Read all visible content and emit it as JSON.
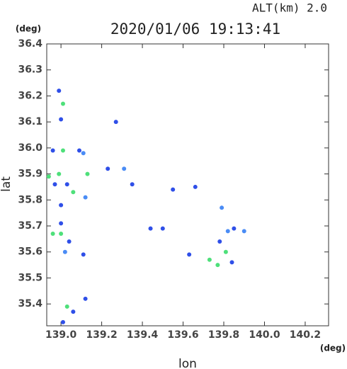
{
  "chart_data": {
    "type": "scatter",
    "corner_label": "ALT(km)  2.0",
    "title": "2020/01/06 19:13:41",
    "y_unit": "(deg)",
    "x_unit": "(deg)",
    "x_label": "lon",
    "y_label": "lat",
    "xlim": [
      138.93,
      140.315
    ],
    "ylim": [
      35.316,
      36.4
    ],
    "xticks": [
      {
        "value": 139,
        "label": "139.0"
      },
      {
        "value": 139.2,
        "label": "139.2"
      },
      {
        "value": 139.4,
        "label": "139.4"
      },
      {
        "value": 139.6,
        "label": "139.6"
      },
      {
        "value": 139.8,
        "label": "139.8"
      },
      {
        "value": 140,
        "label": "140.0"
      },
      {
        "value": 140.2,
        "label": "140.2"
      }
    ],
    "yticks": [
      36.4,
      36.3,
      36.2,
      36.1,
      {
        "value": 36,
        "label": "36.0"
      },
      35.9,
      35.8,
      35.7,
      35.6,
      35.5,
      35.4
    ],
    "x": [
      138.99,
      139.01,
      139.0,
      139.01,
      138.96,
      139.09,
      139.11,
      139.27,
      138.99,
      139.03,
      138.97,
      138.94,
      139.06,
      139.0,
      139.12,
      138.96,
      139.0,
      139.0,
      139.04,
      139.02,
      139.11,
      139.03,
      139.06,
      139.12,
      139.01,
      139.31,
      139.35,
      139.44,
      139.5,
      139.55,
      139.66,
      139.79,
      139.82,
      139.85,
      139.9,
      139.78,
      139.81,
      139.77,
      139.73,
      139.84,
      139.63,
      139.23,
      139.13
    ],
    "values": [
      36.22,
      36.17,
      36.11,
      35.99,
      35.99,
      35.99,
      35.98,
      36.1,
      35.9,
      35.86,
      35.86,
      35.89,
      35.83,
      35.78,
      35.81,
      35.67,
      35.67,
      35.71,
      35.64,
      35.6,
      35.59,
      35.39,
      35.37,
      35.42,
      35.33,
      35.92,
      35.86,
      35.69,
      35.69,
      35.84,
      35.85,
      35.77,
      35.68,
      35.69,
      35.68,
      35.64,
      35.6,
      35.55,
      35.57,
      35.56,
      35.59,
      35.92,
      35.9
    ],
    "colors": [
      "#2f4fe8",
      "#4ee07a",
      "#2f4fe8",
      "#4ee07a",
      "#2f4fe8",
      "#2f4fe8",
      "#4a8cf5",
      "#2f4fe8",
      "#4ee07a",
      "#2f4fe8",
      "#2f4fe8",
      "#4ee07a",
      "#4ee07a",
      "#2f4fe8",
      "#4a8cf5",
      "#4ee07a",
      "#4ee07a",
      "#2f4fe8",
      "#2f4fe8",
      "#4a8cf5",
      "#2f4fe8",
      "#4ee07a",
      "#2f4fe8",
      "#2f4fe8",
      "#2f4fe8",
      "#4a8cf5",
      "#2f4fe8",
      "#2f4fe8",
      "#2f4fe8",
      "#2f4fe8",
      "#2f4fe8",
      "#4a8cf5",
      "#4a8cf5",
      "#2f4fe8",
      "#4a8cf5",
      "#2f4fe8",
      "#4ee07a",
      "#4ee07a",
      "#4ee07a",
      "#2f4fe8",
      "#2f4fe8",
      "#2f4fe8",
      "#4ee07a"
    ]
  }
}
